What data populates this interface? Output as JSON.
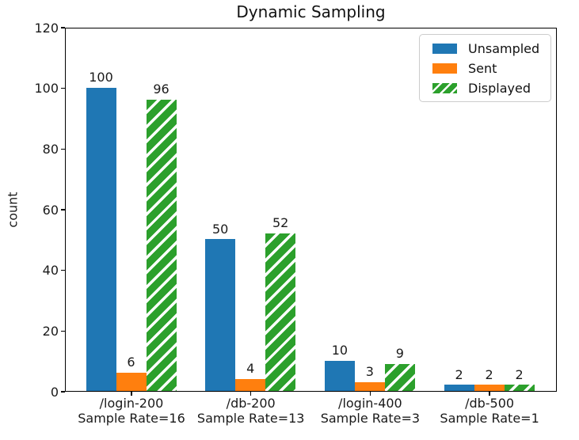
{
  "chart_data": {
    "type": "bar",
    "title": "Dynamic Sampling",
    "xlabel": "",
    "ylabel": "count",
    "ylim": [
      0,
      120
    ],
    "yticks": [
      0,
      20,
      40,
      60,
      80,
      100,
      120
    ],
    "grid": false,
    "legend_position": "upper right",
    "bar_value_labels_shown": true,
    "categories": [
      {
        "label": "/login-200",
        "sublabel": "Sample Rate=16"
      },
      {
        "label": "/db-200",
        "sublabel": "Sample Rate=13"
      },
      {
        "label": "/login-400",
        "sublabel": "Sample Rate=3"
      },
      {
        "label": "/db-500",
        "sublabel": "Sample Rate=1"
      }
    ],
    "series": [
      {
        "name": "Unsampled",
        "color": "#1f77b4",
        "hatch": "none",
        "values": [
          100,
          50,
          10,
          2
        ]
      },
      {
        "name": "Sent",
        "color": "#ff7f0e",
        "hatch": "none",
        "values": [
          6,
          4,
          3,
          2
        ]
      },
      {
        "name": "Displayed",
        "color": "#2ca02c",
        "hatch": "diagonal-white",
        "values": [
          96,
          52,
          9,
          2
        ]
      }
    ]
  }
}
